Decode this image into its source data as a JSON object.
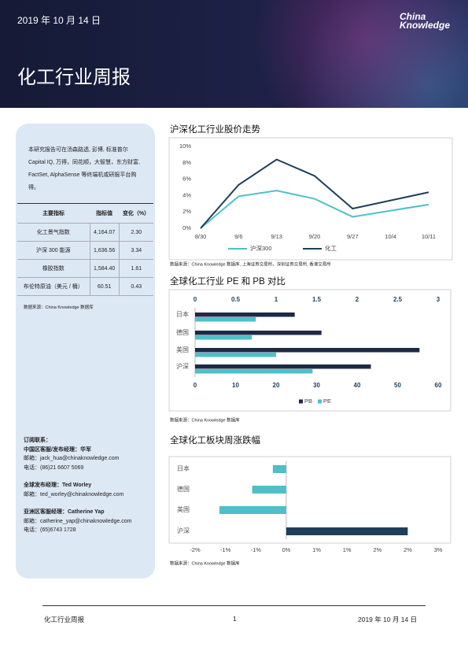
{
  "header": {
    "date": "2019 年 10 月 14 日",
    "logo": [
      "China",
      "Knowledge"
    ],
    "title": "化工行业周报"
  },
  "sidebar": {
    "intro": "本研究报告可在汤森路透, 彭博, 标准普尔 Capital IQ, 万得，同花顺，大智慧，东方财富, FactSet, AlphaSense 等终端机或研报平台购得。",
    "table": {
      "header": [
        "主要指标",
        "指标值",
        "变化（%）"
      ],
      "rows": [
        [
          "化工景气指数",
          "4,164.07",
          "2.30"
        ],
        [
          "沪深 300 能源",
          "1,636.56",
          "3.34"
        ],
        [
          "橡胶指数",
          "1,584.40",
          "1.61"
        ],
        [
          "布伦特原油（美元 / 桶）",
          "60.51",
          "0.43"
        ]
      ]
    },
    "source": "数据来源：China Knowledge 数据库",
    "contacts": {
      "heading": "订阅联系：",
      "groups": [
        {
          "role": "中国区客服/发布经理：华军",
          "email": "邮箱：jack_hua@chinaknowledge.com",
          "phone": "电话：(86)21 6607 5069"
        },
        {
          "role": "全球发布经理：Ted Worley",
          "email": "邮箱：ted_worley@chinaknowledge.com"
        },
        {
          "role": "亚洲区客服经理：Catherine Yap",
          "email": "邮箱：catherine_yap@chinaknowledge.com",
          "phone": "电话：(65)6743 1728"
        }
      ]
    }
  },
  "chart_data": [
    {
      "type": "line",
      "title": "沪深化工行业股价走势",
      "categories": [
        "8/30",
        "9/6",
        "9/13",
        "9/20",
        "9/27",
        "10/4",
        "10/11"
      ],
      "series": [
        {
          "name": "沪深300",
          "color": "#4fbfc9",
          "values": [
            0,
            3.9,
            4.6,
            3.6,
            1.4,
            2.15,
            2.9
          ]
        },
        {
          "name": "化工",
          "color": "#1d3f5a",
          "values": [
            0,
            5.3,
            8.4,
            6.4,
            2.4,
            3.4,
            4.4
          ]
        }
      ],
      "ylim": [
        0,
        10
      ],
      "yticks": [
        {
          "value": 0,
          "label": "0%"
        },
        {
          "value": 2,
          "label": "2%"
        },
        {
          "value": 4,
          "label": "4%"
        },
        {
          "value": 6,
          "label": "6%"
        },
        {
          "value": 8,
          "label": "8%"
        },
        {
          "value": 10,
          "label": "10%"
        }
      ],
      "grid": false,
      "legend": "bottom",
      "source": "数据来源：China Knowledge 数据库, 上海证券交易所，深圳证券交易所, 香港交易所"
    },
    {
      "type": "hbar-dual",
      "title": "全球化工行业 PE 和 PB 对比",
      "categories": [
        "日本",
        "德国",
        "美国",
        "沪深"
      ],
      "series": [
        {
          "name": "PB",
          "color": "#1e2a44",
          "axis": "x2",
          "values": [
            1.23,
            1.56,
            2.77,
            2.17
          ]
        },
        {
          "name": "PE",
          "color": "#4fbfc9",
          "values": [
            15,
            14,
            20,
            29
          ]
        }
      ],
      "xlim": [
        0,
        60
      ],
      "xticks": [
        0,
        10,
        20,
        30,
        40,
        50,
        60
      ],
      "x2lim": [
        0,
        3
      ],
      "x2ticks": [
        0,
        0.5,
        1,
        1.5,
        2,
        2.5,
        3
      ],
      "legend": "bottom",
      "source": "数据来源：China Knowledge 数据库"
    },
    {
      "type": "hbar",
      "title": "全球化工板块周涨跌幅",
      "categories": [
        "日本",
        "德国",
        "美国",
        "沪深"
      ],
      "values": [
        -0.22,
        -0.56,
        -1.1,
        2.0
      ],
      "colors": [
        "#4fbfc9",
        "#4fbfc9",
        "#4fbfc9",
        "#1d3f5a"
      ],
      "xlim": [
        -1.5,
        2.5
      ],
      "xticks": [
        {
          "value": -1.5,
          "label": "-2%"
        },
        {
          "value": -1,
          "label": "-1%"
        },
        {
          "value": -0.5,
          "label": "-1%"
        },
        {
          "value": 0,
          "label": "0%"
        },
        {
          "value": 0.5,
          "label": "1%"
        },
        {
          "value": 1,
          "label": "1%"
        },
        {
          "value": 1.5,
          "label": "2%"
        },
        {
          "value": 2,
          "label": "2%"
        },
        {
          "value": 2.5,
          "label": "3%"
        }
      ],
      "source": "数据来源：China Knowledge 数据库"
    }
  ],
  "footer": {
    "left": "化工行业周报",
    "page": "1",
    "right": "2019 年 10 月 14 日"
  }
}
